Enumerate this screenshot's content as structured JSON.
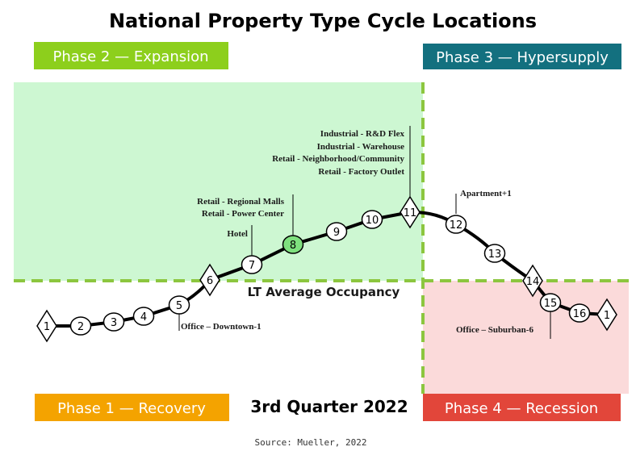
{
  "title": "National Property Type Cycle Locations",
  "quarter": "3rd Quarter 2022",
  "source": "Source: Mueller, 2022",
  "lt_average_label": "LT Average Occupancy",
  "phases": [
    {
      "id": "phase-1",
      "label": "Phase 1 — Recovery",
      "color": "#f4a300"
    },
    {
      "id": "phase-2",
      "label": "Phase 2 — Expansion",
      "color": "#8dcf1c"
    },
    {
      "id": "phase-3",
      "label": "Phase 3 — Hypersupply",
      "color": "#13707f"
    },
    {
      "id": "phase-4",
      "label": "Phase 4 — Recession",
      "color": "#e2463a"
    }
  ],
  "zone_colors": {
    "expansion": "#cdf7d2",
    "recession": "#fbdada",
    "dash": "#8cc63f"
  },
  "nodes": [
    {
      "num": "1",
      "shape": "diamond"
    },
    {
      "num": "2",
      "shape": "circle"
    },
    {
      "num": "3",
      "shape": "circle"
    },
    {
      "num": "4",
      "shape": "circle"
    },
    {
      "num": "5",
      "shape": "circle"
    },
    {
      "num": "6",
      "shape": "diamond"
    },
    {
      "num": "7",
      "shape": "circle"
    },
    {
      "num": "8",
      "shape": "circle",
      "highlight": true
    },
    {
      "num": "9",
      "shape": "circle"
    },
    {
      "num": "10",
      "shape": "circle"
    },
    {
      "num": "11",
      "shape": "diamond"
    },
    {
      "num": "12",
      "shape": "circle"
    },
    {
      "num": "13",
      "shape": "circle"
    },
    {
      "num": "14",
      "shape": "diamond"
    },
    {
      "num": "15",
      "shape": "circle"
    },
    {
      "num": "16",
      "shape": "circle"
    },
    {
      "num": "1",
      "shape": "diamond"
    }
  ],
  "highlight_color": "#7ee07e",
  "annotations": {
    "office_downtown": "Office – Downtown-1",
    "hotel": "Hotel",
    "retail_regional": "Retail - Regional Malls",
    "retail_power": "Retail - Power Center",
    "industrial_rd": "Industrial - R&D Flex",
    "industrial_warehouse": "Industrial - Warehouse",
    "retail_neighborhood": "Retail  - Neighborhood/Community",
    "retail_factory": "Retail - Factory Outlet",
    "apartment": "Apartment+1",
    "office_suburban": "Office – Suburban-6"
  }
}
